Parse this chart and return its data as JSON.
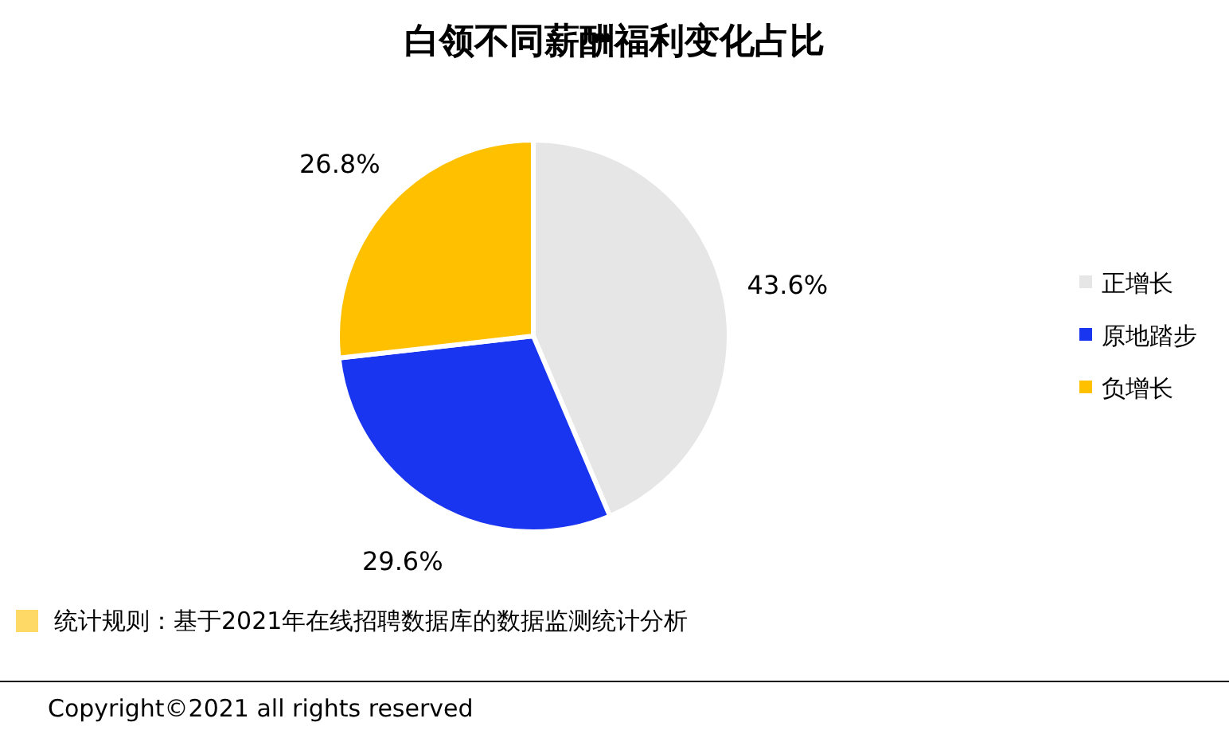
{
  "chart_data": {
    "type": "pie",
    "title": "白领不同薪酬福利变化占比",
    "categories": [
      "正增长",
      "原地踏步",
      "负增长"
    ],
    "values": [
      43.6,
      29.6,
      26.8
    ],
    "colors": [
      "#e6e6e6",
      "#1a35f0",
      "#ffc000"
    ],
    "value_labels": [
      "43.6%",
      "29.6%",
      "26.8%"
    ],
    "legend": "right",
    "annotations": [
      "统计规则：基于2021年在线招聘数据库的数据监测统计分析",
      "Copyright©2021 all rights reserved"
    ]
  }
}
